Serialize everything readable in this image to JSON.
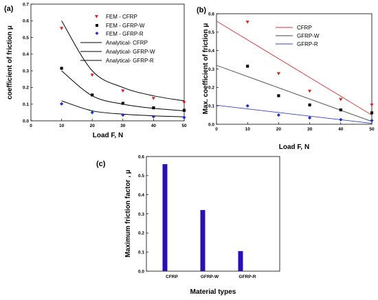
{
  "chart_data": [
    {
      "panel": "(a)",
      "type": "scatter",
      "xlabel": "Load F, N",
      "ylabel": "coefficient of friction μ",
      "xlim": [
        0,
        50
      ],
      "ylim": [
        0,
        0.7
      ],
      "xticks": [
        "0",
        "10",
        "20",
        "30",
        "40",
        "50"
      ],
      "yticks": [
        "0.0",
        "0.1",
        "0.2",
        "0.3",
        "0.4",
        "0.5",
        "0.6",
        "0.7"
      ],
      "legend_position": "top-right",
      "grid": false,
      "x": [
        10,
        20,
        30,
        40,
        50
      ],
      "series": [
        {
          "name": "FEM - CFRP",
          "kind": "points",
          "marker": "triangle-down",
          "color": "#e02020",
          "values": [
            0.555,
            0.275,
            0.18,
            0.135,
            0.11
          ]
        },
        {
          "name": "FEM - GFRP-W",
          "kind": "points",
          "marker": "square",
          "color": "#000000",
          "values": [
            0.315,
            0.155,
            0.105,
            0.078,
            0.063
          ]
        },
        {
          "name": "FEM - GFRP-R",
          "kind": "points",
          "marker": "diamond",
          "color": "#1f2fd6",
          "values": [
            0.102,
            0.05,
            0.035,
            0.025,
            0.02
          ]
        },
        {
          "name": "Analytical- CFRP",
          "kind": "line",
          "color": "#000000",
          "values": [
            0.6,
            0.3,
            0.2,
            0.15,
            0.12
          ]
        },
        {
          "name": "Analytical- GFRP-W",
          "kind": "line",
          "color": "#000000",
          "values": [
            0.3,
            0.15,
            0.1,
            0.075,
            0.06
          ]
        },
        {
          "name": "Analytical- GFRP-R",
          "kind": "line",
          "color": "#000000",
          "values": [
            0.12,
            0.06,
            0.04,
            0.03,
            0.024
          ]
        }
      ]
    },
    {
      "panel": "(b)",
      "type": "scatter",
      "xlabel": "Load F, N",
      "ylabel": "Max. coefficient of friction μ",
      "xlim": [
        0,
        50
      ],
      "ylim": [
        0,
        0.6
      ],
      "xticks": [
        "0",
        "10",
        "20",
        "30",
        "40",
        "50"
      ],
      "yticks": [
        "0.0",
        "0.1",
        "0.2",
        "0.3",
        "0.4",
        "0.5",
        "0.6"
      ],
      "legend_position": "top-right",
      "grid": false,
      "points_x": [
        10,
        20,
        30,
        40,
        50
      ],
      "points": [
        {
          "marker": "triangle-down",
          "color": "#e02020",
          "values": [
            0.555,
            0.275,
            0.18,
            0.135,
            0.105
          ]
        },
        {
          "marker": "square",
          "color": "#000000",
          "values": [
            0.315,
            0.155,
            0.105,
            0.078,
            0.062
          ]
        },
        {
          "marker": "diamond",
          "color": "#1f2fd6",
          "values": [
            0.1,
            0.05,
            0.035,
            0.025,
            0.02
          ]
        }
      ],
      "series": [
        {
          "name": "CFRP",
          "color": "#e03030",
          "x": [
            0,
            50
          ],
          "values": [
            0.56,
            0.05
          ]
        },
        {
          "name": "GFRP-W",
          "color": "#444444",
          "x": [
            0,
            50
          ],
          "values": [
            0.32,
            0.015
          ]
        },
        {
          "name": "GFRP-R",
          "color": "#3040d0",
          "x": [
            0,
            50
          ],
          "values": [
            0.103,
            0.005
          ]
        }
      ]
    },
    {
      "panel": "(c)",
      "type": "bar",
      "xlabel": "Material types",
      "ylabel": "Maximum friction factor , μ",
      "ylim": [
        0,
        0.6
      ],
      "yticks": [
        "0.0",
        "0.1",
        "0.2",
        "0.3",
        "0.4",
        "0.5",
        "0.6"
      ],
      "categories": [
        "CFRP",
        "GFRP-W",
        "GFRP-R"
      ],
      "values": [
        0.56,
        0.32,
        0.105
      ],
      "color": "#2a10b0",
      "grid": false
    }
  ]
}
